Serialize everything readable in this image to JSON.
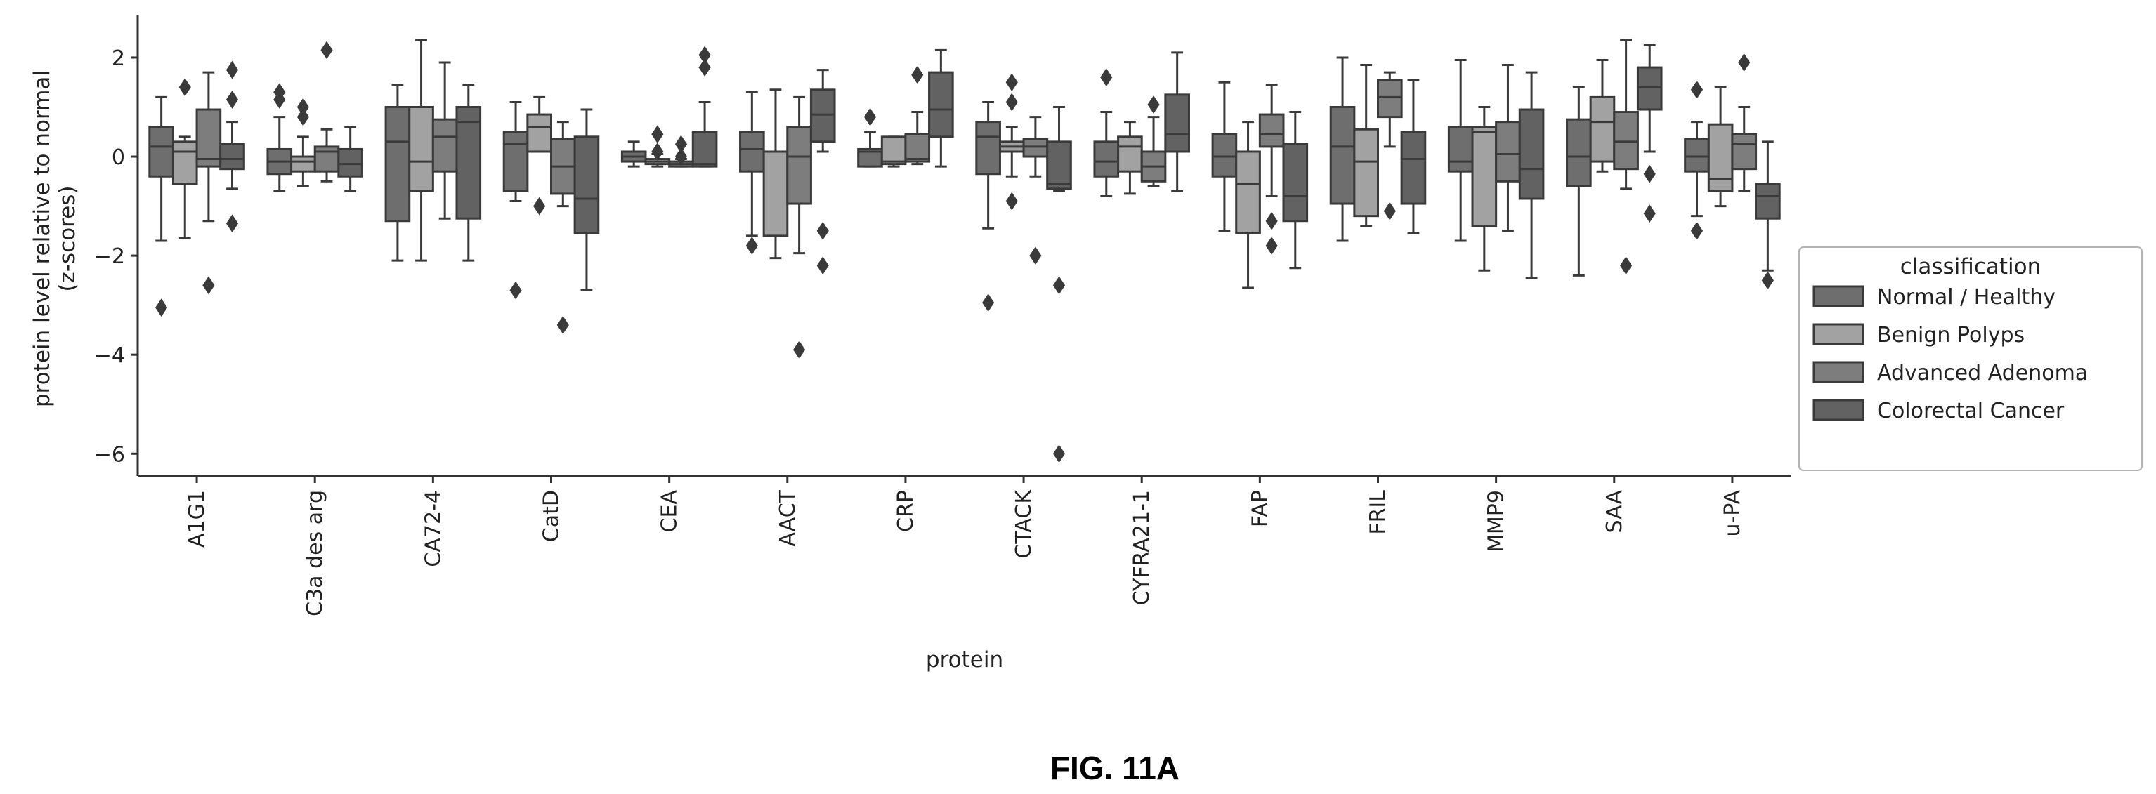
{
  "figure_caption": "FIG. 11A",
  "colors": {
    "Normal / Healthy": "#6e6e6e",
    "Benign Polyps": "#a2a2a2",
    "Advanced Adenoma": "#7d7d7d",
    "Colorectal Cancer": "#626262",
    "line": "#3a3a3a"
  },
  "chart_data": {
    "type": "box",
    "title": "",
    "xlabel": "protein",
    "ylabel_lines": [
      "protein level relative to normal",
      "(z-scores)"
    ],
    "ylim": [
      -6.45,
      2.85
    ],
    "yticks": [
      2,
      0,
      -2,
      -4,
      -6
    ],
    "ytick_labels": [
      "2",
      "0",
      "−2",
      "−4",
      "−6"
    ],
    "legend": {
      "title": "classification",
      "position": "right",
      "entries": [
        "Normal / Healthy",
        "Benign Polyps",
        "Advanced Adenoma",
        "Colorectal Cancer"
      ]
    },
    "categories": [
      "A1G1",
      "C3a des arg",
      "CA72-4",
      "CatD",
      "CEA",
      "AACT",
      "CRP",
      "CTACK",
      "CYFRA21-1",
      "FAP",
      "FRIL",
      "MMP9",
      "SAA",
      "u-PA"
    ],
    "series": [
      {
        "name": "Normal / Healthy",
        "boxes": [
          {
            "whislo": -1.7,
            "q1": -0.4,
            "med": 0.2,
            "q3": 0.6,
            "whishi": 1.2,
            "fliers": [
              -3.05
            ]
          },
          {
            "whislo": -0.7,
            "q1": -0.35,
            "med": -0.1,
            "q3": 0.15,
            "whishi": 0.8,
            "fliers": [
              1.15,
              1.3
            ]
          },
          {
            "whislo": -2.1,
            "q1": -1.3,
            "med": 0.3,
            "q3": 1.0,
            "whishi": 1.45,
            "fliers": []
          },
          {
            "whislo": -0.9,
            "q1": -0.7,
            "med": 0.25,
            "q3": 0.5,
            "whishi": 1.1,
            "fliers": [
              -2.7
            ]
          },
          {
            "whislo": -0.2,
            "q1": -0.1,
            "med": 0.0,
            "q3": 0.1,
            "whishi": 0.3,
            "fliers": []
          },
          {
            "whislo": -1.6,
            "q1": -0.3,
            "med": 0.15,
            "q3": 0.5,
            "whishi": 1.3,
            "fliers": [
              -1.8
            ]
          },
          {
            "whislo": -0.2,
            "q1": -0.2,
            "med": 0.1,
            "q3": 0.15,
            "whishi": 0.5,
            "fliers": [
              0.8
            ]
          },
          {
            "whislo": -1.45,
            "q1": -0.35,
            "med": 0.4,
            "q3": 0.7,
            "whishi": 1.1,
            "fliers": [
              -2.95
            ]
          },
          {
            "whislo": -0.8,
            "q1": -0.4,
            "med": -0.1,
            "q3": 0.3,
            "whishi": 0.9,
            "fliers": [
              1.6
            ]
          },
          {
            "whislo": -1.5,
            "q1": -0.4,
            "med": 0.0,
            "q3": 0.45,
            "whishi": 1.5,
            "fliers": []
          },
          {
            "whislo": -1.7,
            "q1": -0.95,
            "med": 0.2,
            "q3": 1.0,
            "whishi": 2.0,
            "fliers": []
          },
          {
            "whislo": -1.7,
            "q1": -0.3,
            "med": -0.1,
            "q3": 0.6,
            "whishi": 1.95,
            "fliers": []
          },
          {
            "whislo": -2.4,
            "q1": -0.6,
            "med": 0.0,
            "q3": 0.75,
            "whishi": 1.4,
            "fliers": []
          },
          {
            "whislo": -1.2,
            "q1": -0.3,
            "med": 0.0,
            "q3": 0.35,
            "whishi": 0.7,
            "fliers": [
              1.35,
              -1.5
            ]
          }
        ]
      },
      {
        "name": "Benign Polyps",
        "boxes": [
          {
            "whislo": -1.65,
            "q1": -0.55,
            "med": 0.1,
            "q3": 0.3,
            "whishi": 0.4,
            "fliers": [
              1.4
            ]
          },
          {
            "whislo": -0.6,
            "q1": -0.3,
            "med": -0.1,
            "q3": 0.0,
            "whishi": 0.4,
            "fliers": [
              0.8,
              1.0
            ]
          },
          {
            "whislo": -2.1,
            "q1": -0.7,
            "med": -0.1,
            "q3": 1.0,
            "whishi": 2.35,
            "fliers": []
          },
          {
            "whislo": 0.1,
            "q1": 0.1,
            "med": 0.6,
            "q3": 0.85,
            "whishi": 1.2,
            "fliers": [
              -1.0
            ]
          },
          {
            "whislo": -0.2,
            "q1": -0.15,
            "med": -0.1,
            "q3": -0.05,
            "whishi": 0.05,
            "fliers": [
              0.1,
              0.45
            ]
          },
          {
            "whislo": -2.05,
            "q1": -1.6,
            "med": 0.1,
            "q3": 0.1,
            "whishi": 1.35,
            "fliers": []
          },
          {
            "whislo": -0.2,
            "q1": -0.15,
            "med": -0.1,
            "q3": 0.4,
            "whishi": 0.4,
            "fliers": []
          },
          {
            "whislo": -0.4,
            "q1": 0.1,
            "med": 0.2,
            "q3": 0.3,
            "whishi": 0.6,
            "fliers": [
              1.1,
              1.5,
              -0.9
            ]
          },
          {
            "whislo": -0.75,
            "q1": -0.3,
            "med": 0.2,
            "q3": 0.4,
            "whishi": 0.7,
            "fliers": []
          },
          {
            "whislo": -2.65,
            "q1": -1.55,
            "med": -0.55,
            "q3": 0.1,
            "whishi": 0.7,
            "fliers": []
          },
          {
            "whislo": -1.4,
            "q1": -1.2,
            "med": -0.1,
            "q3": 0.55,
            "whishi": 1.85,
            "fliers": []
          },
          {
            "whislo": -2.3,
            "q1": -1.4,
            "med": 0.5,
            "q3": 0.6,
            "whishi": 1.0,
            "fliers": []
          },
          {
            "whislo": -0.3,
            "q1": -0.1,
            "med": 0.7,
            "q3": 1.2,
            "whishi": 1.95,
            "fliers": []
          },
          {
            "whislo": -1.0,
            "q1": -0.7,
            "med": -0.45,
            "q3": 0.65,
            "whishi": 1.4,
            "fliers": []
          }
        ]
      },
      {
        "name": "Advanced Adenoma",
        "boxes": [
          {
            "whislo": -1.3,
            "q1": -0.2,
            "med": -0.05,
            "q3": 0.95,
            "whishi": 1.7,
            "fliers": [
              -2.6
            ]
          },
          {
            "whislo": -0.5,
            "q1": -0.3,
            "med": 0.1,
            "q3": 0.2,
            "whishi": 0.55,
            "fliers": [
              2.15
            ]
          },
          {
            "whislo": -1.25,
            "q1": -0.3,
            "med": 0.4,
            "q3": 0.75,
            "whishi": 1.9,
            "fliers": []
          },
          {
            "whislo": -1.0,
            "q1": -0.75,
            "med": -0.2,
            "q3": 0.35,
            "whishi": 0.7,
            "fliers": [
              -3.4
            ]
          },
          {
            "whislo": -0.2,
            "q1": -0.2,
            "med": -0.15,
            "q3": -0.1,
            "whishi": -0.05,
            "fliers": [
              0.0,
              0.25
            ]
          },
          {
            "whislo": -1.95,
            "q1": -0.95,
            "med": 0.0,
            "q3": 0.6,
            "whishi": 1.2,
            "fliers": [
              -3.9
            ]
          },
          {
            "whislo": -0.15,
            "q1": -0.1,
            "med": -0.05,
            "q3": 0.45,
            "whishi": 0.9,
            "fliers": [
              1.65
            ]
          },
          {
            "whislo": -0.4,
            "q1": 0.0,
            "med": 0.2,
            "q3": 0.35,
            "whishi": 0.8,
            "fliers": [
              -2.0
            ]
          },
          {
            "whislo": -0.6,
            "q1": -0.5,
            "med": -0.2,
            "q3": 0.1,
            "whishi": 0.8,
            "fliers": [
              1.05
            ]
          },
          {
            "whislo": -0.8,
            "q1": 0.2,
            "med": 0.45,
            "q3": 0.85,
            "whishi": 1.45,
            "fliers": [
              -1.3,
              -1.8
            ]
          },
          {
            "whislo": 0.2,
            "q1": 0.8,
            "med": 1.2,
            "q3": 1.55,
            "whishi": 1.7,
            "fliers": [
              -1.1
            ]
          },
          {
            "whislo": -1.5,
            "q1": -0.5,
            "med": 0.05,
            "q3": 0.7,
            "whishi": 1.85,
            "fliers": []
          },
          {
            "whislo": -0.65,
            "q1": -0.25,
            "med": 0.3,
            "q3": 0.9,
            "whishi": 2.35,
            "fliers": [
              -2.2
            ]
          },
          {
            "whislo": -0.7,
            "q1": -0.25,
            "med": 0.25,
            "q3": 0.45,
            "whishi": 1.0,
            "fliers": [
              1.9
            ]
          }
        ]
      },
      {
        "name": "Colorectal Cancer",
        "boxes": [
          {
            "whislo": -0.65,
            "q1": -0.25,
            "med": -0.05,
            "q3": 0.25,
            "whishi": 0.7,
            "fliers": [
              1.75,
              1.15,
              -1.35
            ]
          },
          {
            "whislo": -0.7,
            "q1": -0.4,
            "med": -0.15,
            "q3": 0.15,
            "whishi": 0.6,
            "fliers": []
          },
          {
            "whislo": -2.1,
            "q1": -1.25,
            "med": 0.7,
            "q3": 1.0,
            "whishi": 1.45,
            "fliers": []
          },
          {
            "whislo": -2.7,
            "q1": -1.55,
            "med": -0.85,
            "q3": 0.4,
            "whishi": 0.95,
            "fliers": []
          },
          {
            "whislo": -0.2,
            "q1": -0.2,
            "med": -0.15,
            "q3": 0.5,
            "whishi": 1.1,
            "fliers": [
              1.8,
              2.05
            ]
          },
          {
            "whislo": 0.1,
            "q1": 0.3,
            "med": 0.85,
            "q3": 1.35,
            "whishi": 1.75,
            "fliers": [
              -1.5,
              -2.2
            ]
          },
          {
            "whislo": -0.2,
            "q1": 0.4,
            "med": 0.95,
            "q3": 1.7,
            "whishi": 2.15,
            "fliers": []
          },
          {
            "whislo": -0.7,
            "q1": -0.65,
            "med": -0.55,
            "q3": 0.3,
            "whishi": 1.0,
            "fliers": [
              -2.6,
              -6.0
            ]
          },
          {
            "whislo": -0.7,
            "q1": 0.1,
            "med": 0.45,
            "q3": 1.25,
            "whishi": 2.1,
            "fliers": []
          },
          {
            "whislo": -2.25,
            "q1": -1.3,
            "med": -0.8,
            "q3": 0.25,
            "whishi": 0.9,
            "fliers": []
          },
          {
            "whislo": -1.55,
            "q1": -0.95,
            "med": -0.05,
            "q3": 0.5,
            "whishi": 1.55,
            "fliers": []
          },
          {
            "whislo": -2.45,
            "q1": -0.85,
            "med": -0.25,
            "q3": 0.95,
            "whishi": 1.7,
            "fliers": []
          },
          {
            "whislo": 0.1,
            "q1": 0.95,
            "med": 1.4,
            "q3": 1.8,
            "whishi": 2.25,
            "fliers": [
              -0.35,
              -1.15
            ]
          },
          {
            "whislo": -2.3,
            "q1": -1.25,
            "med": -0.8,
            "q3": -0.55,
            "whishi": 0.3,
            "fliers": [
              -2.5
            ]
          }
        ]
      }
    ]
  }
}
